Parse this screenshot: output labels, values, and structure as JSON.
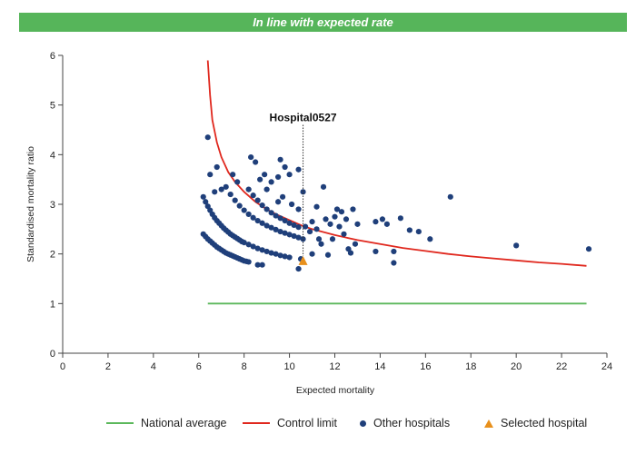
{
  "banner": {
    "text": "In line with expected rate",
    "color": "#56b55a"
  },
  "chart_data": {
    "type": "scatter",
    "title": "",
    "xlabel": "Expected mortality",
    "ylabel": "Standardised mortality ratio",
    "xlim": [
      0,
      24
    ],
    "ylim": [
      0,
      6
    ],
    "x_ticks": [
      0,
      2,
      4,
      6,
      8,
      10,
      12,
      14,
      16,
      18,
      20,
      22,
      24
    ],
    "y_ticks": [
      0,
      1,
      2,
      3,
      4,
      5,
      6
    ],
    "grid": false,
    "legend_position": "bottom-right",
    "colors": {
      "national_average": "#5cb85c",
      "control_limit": "#e0281e",
      "other_hospitals": "#1f3f7a",
      "selected_hospital": "#e8901c"
    },
    "legend": {
      "national_average": "National average",
      "control_limit": "Control limit",
      "other_hospitals": "Other hospitals",
      "selected_hospital": "Selected hospital"
    },
    "selected": {
      "name": "Hospital0527",
      "x": 10.6,
      "y": 1.85
    },
    "national_average": {
      "y": 1,
      "x_start": 6.4,
      "x_end": 23.1
    },
    "control_limit": {
      "points": [
        [
          6.4,
          5.9
        ],
        [
          6.5,
          5.2
        ],
        [
          6.6,
          4.7
        ],
        [
          6.8,
          4.25
        ],
        [
          7.0,
          3.95
        ],
        [
          7.3,
          3.65
        ],
        [
          7.6,
          3.45
        ],
        [
          8.0,
          3.25
        ],
        [
          8.5,
          3.05
        ],
        [
          9.0,
          2.9
        ],
        [
          9.5,
          2.78
        ],
        [
          10.0,
          2.68
        ],
        [
          10.5,
          2.58
        ],
        [
          11.0,
          2.5
        ],
        [
          12.0,
          2.38
        ],
        [
          13.0,
          2.28
        ],
        [
          14.0,
          2.2
        ],
        [
          15.0,
          2.12
        ],
        [
          16.0,
          2.06
        ],
        [
          17.0,
          2.0
        ],
        [
          18.0,
          1.95
        ],
        [
          19.0,
          1.91
        ],
        [
          20.0,
          1.87
        ],
        [
          21.0,
          1.83
        ],
        [
          22.0,
          1.8
        ],
        [
          23.1,
          1.76
        ]
      ]
    },
    "others": [
      [
        6.2,
        2.4
      ],
      [
        6.3,
        2.35
      ],
      [
        6.4,
        2.3
      ],
      [
        6.5,
        2.26
      ],
      [
        6.6,
        2.22
      ],
      [
        6.7,
        2.18
      ],
      [
        6.8,
        2.14
      ],
      [
        6.9,
        2.11
      ],
      [
        7.0,
        2.08
      ],
      [
        7.1,
        2.05
      ],
      [
        7.2,
        2.02
      ],
      [
        7.3,
        2.0
      ],
      [
        7.4,
        1.98
      ],
      [
        7.5,
        1.96
      ],
      [
        7.6,
        1.94
      ],
      [
        7.7,
        1.92
      ],
      [
        7.8,
        1.9
      ],
      [
        7.9,
        1.88
      ],
      [
        8.0,
        1.86
      ],
      [
        8.1,
        1.85
      ],
      [
        8.2,
        1.84
      ],
      [
        6.2,
        3.15
      ],
      [
        6.3,
        3.05
      ],
      [
        6.4,
        2.96
      ],
      [
        6.5,
        2.88
      ],
      [
        6.6,
        2.8
      ],
      [
        6.7,
        2.73
      ],
      [
        6.8,
        2.67
      ],
      [
        6.9,
        2.62
      ],
      [
        7.0,
        2.57
      ],
      [
        7.1,
        2.52
      ],
      [
        7.2,
        2.48
      ],
      [
        7.3,
        2.44
      ],
      [
        7.4,
        2.4
      ],
      [
        7.5,
        2.37
      ],
      [
        7.6,
        2.34
      ],
      [
        7.7,
        2.31
      ],
      [
        7.8,
        2.28
      ],
      [
        7.9,
        2.25
      ],
      [
        8.0,
        2.23
      ],
      [
        8.2,
        2.19
      ],
      [
        8.4,
        2.15
      ],
      [
        8.6,
        2.11
      ],
      [
        8.8,
        2.08
      ],
      [
        9.0,
        2.05
      ],
      [
        9.2,
        2.02
      ],
      [
        9.4,
        2.0
      ],
      [
        9.6,
        1.97
      ],
      [
        9.8,
        1.95
      ],
      [
        10.0,
        1.93
      ],
      [
        7.2,
        3.35
      ],
      [
        7.4,
        3.2
      ],
      [
        7.6,
        3.08
      ],
      [
        7.8,
        2.97
      ],
      [
        8.0,
        2.88
      ],
      [
        8.2,
        2.8
      ],
      [
        8.4,
        2.73
      ],
      [
        8.6,
        2.67
      ],
      [
        8.8,
        2.62
      ],
      [
        9.0,
        2.57
      ],
      [
        9.2,
        2.53
      ],
      [
        9.4,
        2.49
      ],
      [
        9.6,
        2.45
      ],
      [
        9.8,
        2.42
      ],
      [
        10.0,
        2.39
      ],
      [
        10.2,
        2.36
      ],
      [
        10.4,
        2.33
      ],
      [
        10.6,
        2.3
      ],
      [
        8.2,
        3.3
      ],
      [
        8.4,
        3.18
      ],
      [
        8.6,
        3.08
      ],
      [
        8.8,
        2.98
      ],
      [
        9.0,
        2.9
      ],
      [
        9.2,
        2.83
      ],
      [
        9.4,
        2.77
      ],
      [
        9.6,
        2.72
      ],
      [
        9.8,
        2.67
      ],
      [
        10.0,
        2.62
      ],
      [
        10.2,
        2.58
      ],
      [
        10.4,
        2.54
      ],
      [
        6.4,
        4.35
      ],
      [
        6.5,
        3.6
      ],
      [
        6.8,
        3.75
      ],
      [
        6.7,
        3.25
      ],
      [
        7.0,
        3.3
      ],
      [
        7.5,
        3.6
      ],
      [
        7.7,
        3.45
      ],
      [
        8.3,
        3.95
      ],
      [
        8.5,
        3.85
      ],
      [
        8.7,
        3.5
      ],
      [
        8.9,
        3.6
      ],
      [
        9.0,
        3.3
      ],
      [
        9.2,
        3.45
      ],
      [
        9.5,
        3.55
      ],
      [
        9.6,
        3.9
      ],
      [
        9.8,
        3.75
      ],
      [
        10.0,
        3.6
      ],
      [
        10.4,
        3.7
      ],
      [
        9.7,
        3.15
      ],
      [
        10.1,
        3.0
      ],
      [
        10.4,
        2.9
      ],
      [
        9.5,
        3.05
      ],
      [
        8.8,
        1.78
      ],
      [
        8.6,
        1.78
      ],
      [
        10.6,
        3.25
      ],
      [
        10.7,
        2.55
      ],
      [
        10.9,
        2.45
      ],
      [
        11.0,
        2.65
      ],
      [
        11.2,
        2.5
      ],
      [
        11.5,
        3.35
      ],
      [
        11.4,
        2.2
      ],
      [
        11.6,
        2.7
      ],
      [
        11.8,
        2.6
      ],
      [
        12.0,
        2.75
      ],
      [
        12.1,
        2.9
      ],
      [
        12.2,
        2.55
      ],
      [
        12.4,
        2.4
      ],
      [
        12.5,
        2.7
      ],
      [
        12.6,
        2.1
      ],
      [
        12.8,
        2.9
      ],
      [
        12.9,
        2.2
      ],
      [
        13.0,
        2.6
      ],
      [
        11.0,
        2.0
      ],
      [
        11.3,
        2.3
      ],
      [
        11.7,
        1.98
      ],
      [
        10.4,
        1.7
      ],
      [
        10.5,
        1.9
      ],
      [
        11.2,
        2.95
      ],
      [
        12.3,
        2.85
      ],
      [
        13.8,
        2.65
      ],
      [
        13.8,
        2.05
      ],
      [
        14.1,
        2.7
      ],
      [
        14.3,
        2.6
      ],
      [
        14.6,
        2.05
      ],
      [
        14.6,
        1.82
      ],
      [
        14.9,
        2.72
      ],
      [
        15.3,
        2.48
      ],
      [
        15.7,
        2.45
      ],
      [
        16.2,
        2.3
      ],
      [
        17.1,
        3.15
      ],
      [
        20.0,
        2.17
      ],
      [
        23.2,
        2.1
      ],
      [
        12.7,
        2.02
      ],
      [
        11.9,
        2.3
      ]
    ]
  }
}
